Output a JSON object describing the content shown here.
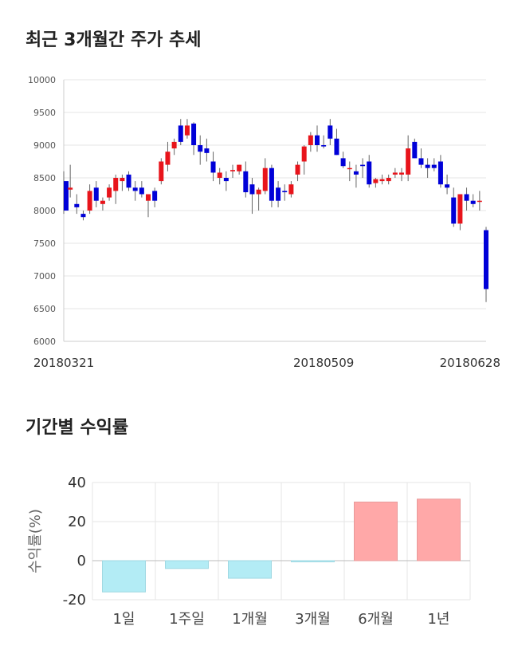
{
  "titles": {
    "price_trend": "최근 3개월간 주가 추세",
    "returns": "기간별 수익률"
  },
  "colors": {
    "up": "#e8141b",
    "down": "#0000d8",
    "bar_negative": "#b3ecf5",
    "bar_positive": "#ffa8a8",
    "grid": "#e6e6e6"
  },
  "chart_data": [
    {
      "type": "candlestick",
      "title": "최근 3개월간 주가 추세",
      "ylim": [
        6000,
        10000
      ],
      "y_ticks": [
        "10000",
        "9500",
        "9000",
        "8500",
        "8000",
        "7500",
        "7000",
        "6500",
        "6000"
      ],
      "x_tick_labels": [
        "20180321",
        "20180509",
        "20180628"
      ],
      "grid": true,
      "candles": [
        [
          8450,
          8600,
          7950,
          8000
        ],
        [
          8320,
          8700,
          8200,
          8350
        ],
        [
          8100,
          8250,
          7950,
          8050
        ],
        [
          7950,
          8000,
          7850,
          7900
        ],
        [
          8000,
          8400,
          7950,
          8300
        ],
        [
          8350,
          8450,
          8050,
          8150
        ],
        [
          8100,
          8200,
          8000,
          8150
        ],
        [
          8200,
          8400,
          8150,
          8350
        ],
        [
          8300,
          8550,
          8100,
          8500
        ],
        [
          8450,
          8550,
          8300,
          8500
        ],
        [
          8550,
          8600,
          8300,
          8350
        ],
        [
          8350,
          8450,
          8150,
          8300
        ],
        [
          8350,
          8450,
          8200,
          8250
        ],
        [
          8150,
          8250,
          7900,
          8250
        ],
        [
          8300,
          8350,
          8050,
          8150
        ],
        [
          8450,
          8800,
          8400,
          8750
        ],
        [
          8700,
          9050,
          8600,
          8900
        ],
        [
          8950,
          9100,
          8850,
          9050
        ],
        [
          9300,
          9400,
          9000,
          9050
        ],
        [
          9150,
          9400,
          9100,
          9300
        ],
        [
          9330,
          9350,
          8850,
          9000
        ],
        [
          9000,
          9150,
          8700,
          8900
        ],
        [
          8950,
          9100,
          8750,
          8880
        ],
        [
          8750,
          8900,
          8450,
          8580
        ],
        [
          8500,
          8650,
          8400,
          8580
        ],
        [
          8500,
          8600,
          8300,
          8450
        ],
        [
          8600,
          8700,
          8500,
          8620
        ],
        [
          8600,
          8700,
          8550,
          8700
        ],
        [
          8600,
          8750,
          8200,
          8280
        ],
        [
          8400,
          8500,
          7950,
          8250
        ],
        [
          8250,
          8350,
          8000,
          8320
        ],
        [
          8300,
          8800,
          8250,
          8650
        ],
        [
          8650,
          8700,
          8050,
          8150
        ],
        [
          8350,
          8450,
          8050,
          8150
        ],
        [
          8300,
          8400,
          8150,
          8280
        ],
        [
          8250,
          8450,
          8200,
          8400
        ],
        [
          8550,
          8750,
          8450,
          8700
        ],
        [
          8750,
          9000,
          8550,
          8980
        ],
        [
          9000,
          9200,
          8900,
          9150
        ],
        [
          9150,
          9300,
          8900,
          9000
        ],
        [
          9000,
          9150,
          8950,
          8980
        ],
        [
          9300,
          9400,
          9000,
          9100
        ],
        [
          9100,
          9250,
          8850,
          8850
        ],
        [
          8800,
          8900,
          8650,
          8680
        ],
        [
          8650,
          8750,
          8450,
          8650
        ],
        [
          8600,
          8700,
          8350,
          8550
        ],
        [
          8700,
          8800,
          8500,
          8680
        ],
        [
          8750,
          8850,
          8350,
          8400
        ],
        [
          8420,
          8500,
          8350,
          8480
        ],
        [
          8450,
          8550,
          8400,
          8480
        ],
        [
          8450,
          8550,
          8400,
          8500
        ],
        [
          8550,
          8650,
          8500,
          8580
        ],
        [
          8550,
          8650,
          8450,
          8580
        ],
        [
          8550,
          9150,
          8450,
          8950
        ],
        [
          9050,
          9100,
          8800,
          8800
        ],
        [
          8800,
          8950,
          8650,
          8700
        ],
        [
          8700,
          8800,
          8500,
          8650
        ],
        [
          8700,
          8800,
          8600,
          8650
        ],
        [
          8750,
          8850,
          8350,
          8400
        ],
        [
          8400,
          8550,
          8250,
          8350
        ],
        [
          8200,
          8350,
          7750,
          7800
        ],
        [
          7800,
          8250,
          7700,
          8250
        ],
        [
          8250,
          8350,
          8000,
          8150
        ],
        [
          8150,
          8250,
          8050,
          8100
        ],
        [
          8150,
          8300,
          8000,
          8150
        ],
        [
          7700,
          7750,
          6600,
          6800
        ]
      ]
    },
    {
      "type": "bar",
      "title": "기간별 수익률",
      "ylabel": "수익률(%)",
      "ylim": [
        -20,
        40
      ],
      "y_ticks": [
        "40",
        "20",
        "0",
        "-20"
      ],
      "categories": [
        "1일",
        "1주일",
        "1개월",
        "3개월",
        "6개월",
        "1년"
      ],
      "values": [
        -16,
        -4,
        -9,
        -0.5,
        30,
        31.5
      ],
      "grid": true
    }
  ]
}
